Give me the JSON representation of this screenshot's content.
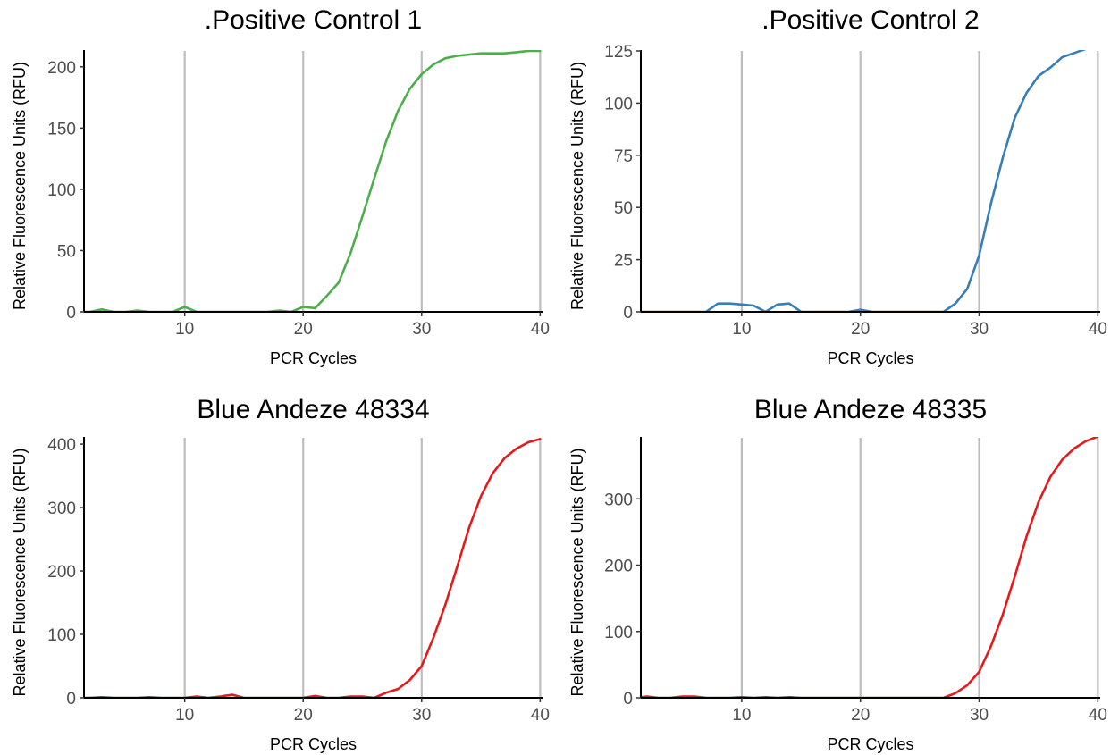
{
  "figure": {
    "background": "#ffffff",
    "vline_color": "#bebebe"
  },
  "chart_data": [
    {
      "type": "line",
      "title": ".Positive Control 1",
      "xlabel": "PCR Cycles",
      "ylabel": "Relative Fluorescence Units (RFU)",
      "xlim": [
        1.5,
        40.2
      ],
      "ylim": [
        0,
        213
      ],
      "xticks": [
        10,
        20,
        30,
        40
      ],
      "yticks": [
        0,
        50,
        100,
        150,
        200
      ],
      "vlines": [
        10,
        20,
        30,
        40
      ],
      "grid": false,
      "color": "#4daf4a",
      "x": [
        1,
        2,
        3,
        4,
        5,
        6,
        7,
        8,
        9,
        10,
        11,
        12,
        13,
        14,
        15,
        16,
        17,
        18,
        19,
        20,
        21,
        22,
        23,
        24,
        25,
        26,
        27,
        28,
        29,
        30,
        31,
        32,
        33,
        34,
        35,
        36,
        37,
        38,
        39,
        40
      ],
      "y": [
        0,
        0,
        2,
        0,
        0,
        1,
        0,
        0,
        0,
        4,
        0,
        0,
        0,
        0,
        0,
        0,
        0,
        1,
        0,
        4,
        3,
        13,
        24,
        48,
        78,
        109,
        139,
        164,
        182,
        194,
        202,
        207,
        209,
        210,
        211,
        211,
        211,
        212,
        213,
        213
      ]
    },
    {
      "type": "line",
      "title": ".Positive Control 2",
      "xlabel": "PCR Cycles",
      "ylabel": "Relative Fluorescence Units (RFU)",
      "xlim": [
        1.5,
        40.2
      ],
      "ylim": [
        0,
        125
      ],
      "xticks": [
        10,
        20,
        30,
        40
      ],
      "yticks": [
        0,
        25,
        50,
        75,
        100,
        125
      ],
      "vlines": [
        10,
        20,
        30,
        40
      ],
      "grid": false,
      "color": "#377eb8",
      "x": [
        1,
        2,
        3,
        4,
        5,
        6,
        7,
        8,
        9,
        10,
        11,
        12,
        13,
        14,
        15,
        16,
        17,
        18,
        19,
        20,
        21,
        22,
        23,
        24,
        25,
        26,
        27,
        28,
        29,
        30,
        31,
        32,
        33,
        34,
        35,
        36,
        37,
        38,
        39,
        40
      ],
      "y": [
        0,
        0,
        0,
        0,
        0,
        0,
        0,
        4,
        4,
        3.5,
        3,
        0,
        3.5,
        4,
        0,
        0,
        0,
        0,
        0,
        1,
        0,
        0,
        0,
        0,
        0,
        0,
        0,
        4,
        11,
        27,
        52,
        74,
        93,
        105,
        113,
        117,
        122,
        124,
        126,
        127
      ]
    },
    {
      "type": "line",
      "title": "Blue Andeze 48334",
      "xlabel": "PCR Cycles",
      "ylabel": "Relative Fluorescence Units (RFU)",
      "xlim": [
        1.5,
        40.2
      ],
      "ylim": [
        0,
        410
      ],
      "xticks": [
        10,
        20,
        30,
        40
      ],
      "yticks": [
        0,
        100,
        200,
        300,
        400
      ],
      "vlines": [
        10,
        20,
        30,
        40
      ],
      "grid": false,
      "color": "#e41a1c",
      "x": [
        1,
        2,
        3,
        4,
        5,
        6,
        7,
        8,
        9,
        10,
        11,
        12,
        13,
        14,
        15,
        16,
        17,
        18,
        19,
        20,
        21,
        22,
        23,
        24,
        25,
        26,
        27,
        28,
        29,
        30,
        31,
        32,
        33,
        34,
        35,
        36,
        37,
        38,
        39,
        40
      ],
      "y": [
        0,
        0,
        1,
        0,
        0,
        0,
        1,
        0,
        0,
        0,
        2,
        0,
        2,
        5,
        0,
        0,
        0,
        0,
        0,
        0,
        3,
        0,
        0,
        2,
        2,
        0,
        8,
        14,
        28,
        50,
        95,
        147,
        207,
        268,
        318,
        354,
        378,
        393,
        403,
        408
      ]
    },
    {
      "type": "line",
      "title": "Blue Andeze 48335",
      "xlabel": "PCR Cycles",
      "ylabel": "Relative Fluorescence Units (RFU)",
      "xlim": [
        1.5,
        40.2
      ],
      "ylim": [
        0,
        392
      ],
      "xticks": [
        10,
        20,
        30,
        40
      ],
      "yticks": [
        0,
        100,
        200,
        300
      ],
      "vlines": [
        10,
        20,
        30,
        40
      ],
      "grid": false,
      "color": "#e41a1c",
      "x": [
        1,
        2,
        3,
        4,
        5,
        6,
        7,
        8,
        9,
        10,
        11,
        12,
        13,
        14,
        15,
        16,
        17,
        18,
        19,
        20,
        21,
        22,
        23,
        24,
        25,
        26,
        27,
        28,
        29,
        30,
        31,
        32,
        33,
        34,
        35,
        36,
        37,
        38,
        39,
        40
      ],
      "y": [
        0,
        2,
        0,
        0,
        2,
        2,
        0,
        0,
        0,
        1,
        0,
        1,
        0,
        1,
        0,
        0,
        0,
        0,
        0,
        0,
        0,
        0,
        0,
        0,
        0,
        0,
        0,
        7,
        19,
        39,
        78,
        126,
        183,
        244,
        295,
        333,
        359,
        376,
        387,
        394
      ]
    }
  ]
}
